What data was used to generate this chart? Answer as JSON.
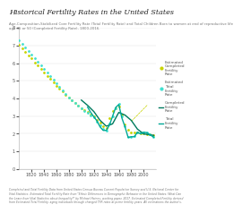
{
  "title": "Historical Fertility Rates in the United States",
  "subtitle": "Age-Composition-Stabilized Core Fertility Rate (Total Fertility Rate) and Total Children Born to women at end of reproductive life\nage 45 or 50 (Completed Fertility Rate), 1800-2016.",
  "footnote": "Completed and Total Fertility Data from United States Census Bureau Current Population Survey and U.S. National Center for\nVital Statistics. Estimated Total Fertility Rate from \"Ethnic Differences in Demographic Behavior in the United States: What Can\nthe Learn from Vital Statistics about Inequality?\" by Michael Haines, working paper, 2017. Estimated Completed Fertility derived\nfrom Estimated Total Fertility, aging individuals through changed TFR rates at prime fertility years. All estimations the author's.",
  "xlim": [
    1800,
    2020
  ],
  "ylim": [
    0,
    8
  ],
  "yticks": [
    0,
    1,
    2,
    3,
    4,
    5,
    6,
    7,
    8
  ],
  "xticks": [
    1820,
    1840,
    1860,
    1880,
    1900,
    1920,
    1940,
    1960,
    1980,
    2000
  ],
  "colors": {
    "est_completed": "#c8d400",
    "est_total": "#40e0d0",
    "completed": "#007a5e",
    "total": "#00a896"
  },
  "legend_labels": [
    "Estimated\nCompleted\nFertility\nRate",
    "Estimated\nTotal\nFertility\nRate",
    "Completed\nFertility\nRate",
    "Total\nFertility\nRate"
  ],
  "est_completed_x": [
    1800,
    1805,
    1810,
    1815,
    1820,
    1825,
    1830,
    1835,
    1840,
    1845,
    1850,
    1855,
    1860,
    1865,
    1870,
    1875,
    1880,
    1885,
    1890,
    1895,
    1900,
    1905,
    1910,
    1915,
    1920,
    1925,
    1930,
    1935,
    1940,
    1945,
    1950,
    1955,
    1960,
    1965,
    1970,
    1975,
    1980,
    1985,
    1990,
    1995,
    2000,
    2005,
    2010,
    2016
  ],
  "est_completed_y": [
    7.04,
    6.85,
    6.65,
    6.45,
    6.28,
    6.05,
    5.85,
    5.65,
    5.48,
    5.28,
    5.1,
    4.9,
    4.72,
    4.55,
    4.38,
    4.2,
    4.02,
    3.88,
    3.72,
    3.6,
    3.45,
    3.35,
    3.22,
    3.1,
    2.98,
    2.78,
    2.6,
    2.42,
    2.32,
    2.9,
    3.3,
    3.45,
    3.55,
    3.1,
    2.5,
    2.2,
    2.08,
    2.05,
    2.05,
    2.02,
    2.0,
    1.98,
    1.96,
    1.92
  ],
  "est_total_x": [
    1800,
    1805,
    1810,
    1815,
    1820,
    1825,
    1830,
    1835,
    1840,
    1845,
    1850,
    1855,
    1860,
    1865,
    1870,
    1875,
    1880,
    1885,
    1890,
    1895,
    1900,
    1905,
    1910,
    1915,
    1920,
    1925,
    1930,
    1935,
    1940,
    1945,
    1950,
    1955,
    1960,
    1965,
    1970,
    1975,
    1980,
    1985,
    1990,
    1995,
    2000,
    2005,
    2010,
    2016
  ],
  "est_total_y": [
    7.3,
    7.1,
    6.9,
    6.7,
    6.5,
    6.28,
    6.08,
    5.88,
    5.68,
    5.48,
    5.28,
    5.05,
    4.85,
    4.65,
    4.45,
    4.25,
    4.05,
    3.88,
    3.72,
    3.58,
    3.42,
    3.3,
    3.18,
    3.05,
    2.92,
    2.68,
    2.45,
    2.25,
    2.15,
    2.55,
    3.0,
    3.45,
    3.68,
    3.0,
    2.42,
    1.82,
    1.82,
    1.88,
    2.08,
    2.05,
    2.08,
    2.05,
    1.97,
    1.82
  ],
  "completed_x": [
    1900,
    1910,
    1920,
    1930,
    1940,
    1950,
    1960,
    1970,
    1980,
    1990,
    2000,
    2010,
    2016
  ],
  "completed_y": [
    3.9,
    3.6,
    3.25,
    2.75,
    2.42,
    2.55,
    3.2,
    3.05,
    2.75,
    2.25,
    1.98,
    1.93,
    1.9
  ],
  "total_x": [
    1910,
    1915,
    1920,
    1925,
    1930,
    1935,
    1940,
    1945,
    1950,
    1955,
    1960,
    1965,
    1970,
    1975,
    1980,
    1985,
    1990,
    1995,
    2000,
    2005,
    2010,
    2016
  ],
  "total_y": [
    3.5,
    3.2,
    2.95,
    2.72,
    2.38,
    2.18,
    2.18,
    2.48,
    2.98,
    3.48,
    3.65,
    2.88,
    2.38,
    1.78,
    1.82,
    1.82,
    2.08,
    1.98,
    2.08,
    2.05,
    1.93,
    1.8
  ],
  "ann_x1": 1978,
  "ann_y1": 2.62,
  "ann_x2": 2008,
  "ann_y2": 3.7
}
